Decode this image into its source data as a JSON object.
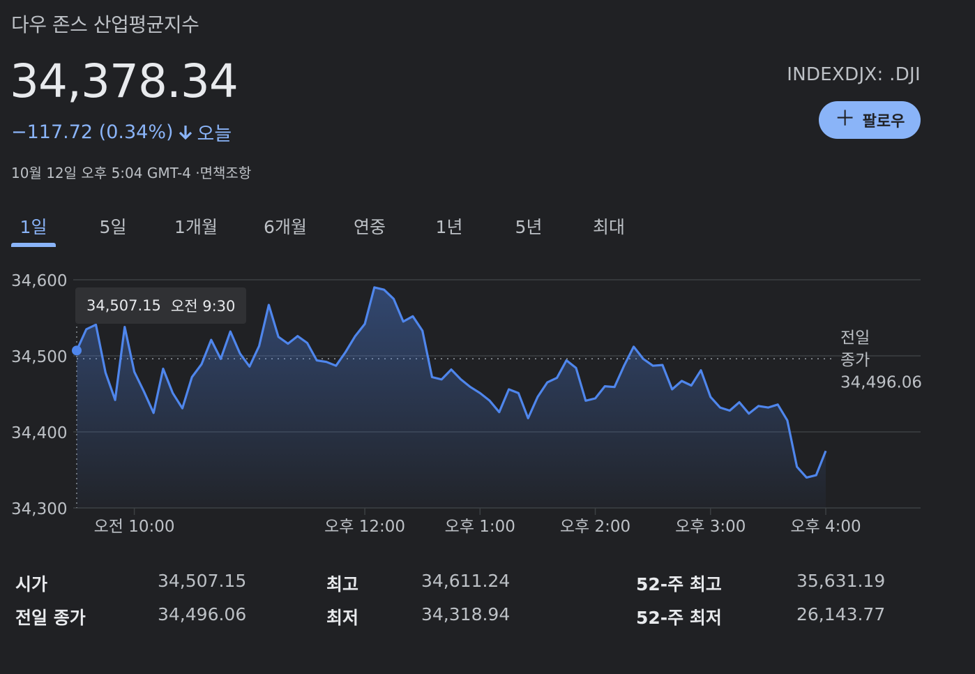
{
  "header": {
    "index_name": "다우 존스 산업평균지수",
    "price": "34,378.34",
    "change": "−117.72 (0.34%)",
    "change_period": "오늘",
    "timestamp": "10월 12일 오후 5:04 GMT-4 ·면책조항",
    "ticker": "INDEXDJX: .DJI",
    "follow_label": "팔로우",
    "follow_icon": "plus-icon",
    "change_icon": "arrow-down-icon"
  },
  "colors": {
    "background": "#202124",
    "accent": "#8ab4f8",
    "line": "#4f86ec",
    "grid": "#3c4043",
    "muted_text": "#bdc1c6"
  },
  "tabs": [
    {
      "label": "1일",
      "active": true
    },
    {
      "label": "5일",
      "active": false
    },
    {
      "label": "1개월",
      "active": false
    },
    {
      "label": "6개월",
      "active": false
    },
    {
      "label": "연중",
      "active": false
    },
    {
      "label": "1년",
      "active": false
    },
    {
      "label": "5년",
      "active": false
    },
    {
      "label": "최대",
      "active": false
    }
  ],
  "tooltip": {
    "value": "34,507.15",
    "time": "오전 9:30"
  },
  "chart_data": {
    "type": "line",
    "ylim": [
      34300,
      34600
    ],
    "y_ticks": [
      "34,600",
      "34,500",
      "34,400",
      "34,300"
    ],
    "y_tick_values": [
      34600,
      34500,
      34400,
      34300
    ],
    "x_ticks": [
      "오전 10:00",
      "오후 12:00",
      "오후 1:00",
      "오후 2:00",
      "오후 3:00",
      "오후 4:00"
    ],
    "x_tick_minutes": [
      600,
      720,
      780,
      840,
      900,
      960
    ],
    "x_range_minutes": [
      570,
      960
    ],
    "prev_close_label": [
      "전일",
      "종가"
    ],
    "prev_close_value_label": "34,496.06",
    "prev_close": 34496.06,
    "grid": true,
    "series": [
      {
        "minutes": [
          570,
          575,
          580,
          585,
          590,
          595,
          600,
          605,
          610,
          615,
          620,
          625,
          630,
          635,
          640,
          645,
          650,
          655,
          660,
          665,
          670,
          675,
          680,
          685,
          690,
          695,
          700,
          705,
          710,
          715,
          720,
          725,
          730,
          735,
          740,
          745,
          750,
          755,
          760,
          765,
          770,
          775,
          780,
          785,
          790,
          795,
          800,
          805,
          810,
          815,
          820,
          825,
          830,
          835,
          840,
          845,
          850,
          855,
          860,
          865,
          870,
          875,
          880,
          885,
          890,
          895,
          900,
          905,
          910,
          915,
          920,
          925,
          930,
          935,
          940,
          945,
          950,
          955,
          960
        ],
        "values": [
          34507,
          34535,
          34541,
          34478,
          34442,
          34538,
          34479,
          34453,
          34425,
          34483,
          34451,
          34431,
          34472,
          34489,
          34521,
          34496,
          34532,
          34503,
          34486,
          34513,
          34567,
          34525,
          34516,
          34526,
          34517,
          34494,
          34492,
          34487,
          34505,
          34526,
          34542,
          34590,
          34587,
          34575,
          34545,
          34552,
          34533,
          34472,
          34469,
          34482,
          34469,
          34459,
          34451,
          34441,
          34426,
          34456,
          34451,
          34418,
          34446,
          34465,
          34471,
          34494,
          34484,
          34441,
          34444,
          34460,
          34459,
          34487,
          34512,
          34496,
          34487,
          34488,
          34456,
          34467,
          34461,
          34481,
          34446,
          34432,
          34428,
          34439,
          34424,
          34434,
          34432,
          34436,
          34415,
          34354,
          34340,
          34343,
          34375
        ]
      }
    ]
  },
  "stats": [
    {
      "label": "시가",
      "value": "34,507.15"
    },
    {
      "label": "전일 종가",
      "value": "34,496.06"
    },
    {
      "label": "최고",
      "value": "34,611.24"
    },
    {
      "label": "최저",
      "value": "34,318.94"
    },
    {
      "label": "52-주 최고",
      "value": "35,631.19"
    },
    {
      "label": "52-주 최저",
      "value": "26,143.77"
    }
  ]
}
